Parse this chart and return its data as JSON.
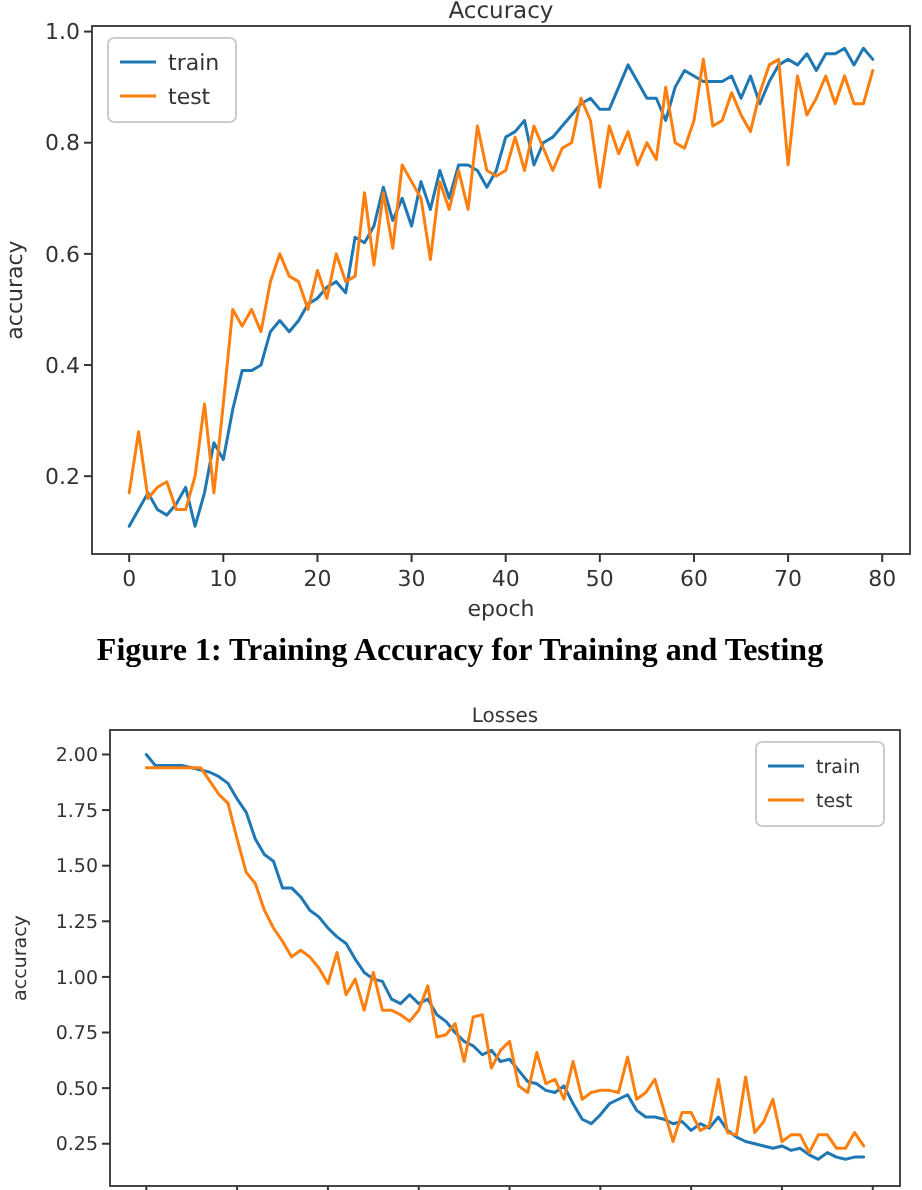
{
  "chart_data": [
    {
      "type": "line",
      "title": "Accuracy",
      "xlabel": "epoch",
      "ylabel": "accuracy",
      "annotations": [
        "Figure 1: Training Accuracy for Training and Testing"
      ],
      "x": [
        0,
        1,
        2,
        3,
        4,
        5,
        6,
        7,
        8,
        9,
        10,
        11,
        12,
        13,
        14,
        15,
        16,
        17,
        18,
        19,
        20,
        21,
        22,
        23,
        24,
        25,
        26,
        27,
        28,
        29,
        30,
        31,
        32,
        33,
        34,
        35,
        36,
        37,
        38,
        39,
        40,
        41,
        42,
        43,
        44,
        45,
        46,
        47,
        48,
        49,
        50,
        51,
        52,
        53,
        54,
        55,
        56,
        57,
        58,
        59,
        60,
        61,
        62,
        63,
        64,
        65,
        66,
        67,
        68,
        69,
        70,
        71,
        72,
        73,
        74,
        75,
        76,
        77,
        78,
        79
      ],
      "xlim": [
        -3.95,
        82.95
      ],
      "xticks": [
        0,
        10,
        20,
        30,
        40,
        50,
        60,
        70,
        80
      ],
      "ylim": [
        0.06,
        1.01
      ],
      "yticks": [
        0.2,
        0.4,
        0.6,
        0.8,
        {
          "value": 1.0,
          "label": "1.0"
        }
      ],
      "legend": "top left",
      "grid": false,
      "series": [
        {
          "name": "train",
          "color": "#1f77b4",
          "values": [
            0.11,
            0.14,
            0.17,
            0.14,
            0.13,
            0.15,
            0.18,
            0.11,
            0.17,
            0.26,
            0.23,
            0.32,
            0.39,
            0.39,
            0.4,
            0.46,
            0.48,
            0.46,
            0.48,
            0.51,
            0.52,
            0.54,
            0.55,
            0.53,
            0.63,
            0.62,
            0.65,
            0.72,
            0.66,
            0.7,
            0.65,
            0.73,
            0.68,
            0.75,
            0.7,
            0.76,
            0.76,
            0.75,
            0.72,
            0.75,
            0.81,
            0.82,
            0.84,
            0.76,
            0.8,
            0.81,
            0.83,
            0.85,
            0.87,
            0.88,
            0.86,
            0.86,
            0.9,
            0.94,
            0.91,
            0.88,
            0.88,
            0.84,
            0.9,
            0.93,
            0.92,
            0.91,
            0.91,
            0.91,
            0.92,
            0.88,
            0.92,
            0.87,
            0.91,
            0.94,
            0.95,
            0.94,
            0.96,
            0.93,
            0.96,
            0.96,
            0.97,
            0.94,
            0.97,
            0.95
          ]
        },
        {
          "name": "test",
          "color": "#ff7f0e",
          "values": [
            0.17,
            0.28,
            0.16,
            0.18,
            0.19,
            0.14,
            0.14,
            0.2,
            0.33,
            0.17,
            0.33,
            0.5,
            0.47,
            0.5,
            0.46,
            0.55,
            0.6,
            0.56,
            0.55,
            0.5,
            0.57,
            0.52,
            0.6,
            0.55,
            0.56,
            0.71,
            0.58,
            0.71,
            0.61,
            0.76,
            0.73,
            0.7,
            0.59,
            0.73,
            0.68,
            0.75,
            0.68,
            0.83,
            0.75,
            0.74,
            0.75,
            0.81,
            0.75,
            0.83,
            0.79,
            0.75,
            0.79,
            0.8,
            0.88,
            0.84,
            0.72,
            0.83,
            0.78,
            0.82,
            0.76,
            0.8,
            0.77,
            0.9,
            0.8,
            0.79,
            0.84,
            0.95,
            0.83,
            0.84,
            0.89,
            0.85,
            0.82,
            0.89,
            0.94,
            0.95,
            0.76,
            0.92,
            0.85,
            0.88,
            0.92,
            0.87,
            0.92,
            0.87,
            0.87,
            0.93
          ]
        }
      ]
    },
    {
      "type": "line",
      "title": "Losses",
      "ylabel": "accuracy",
      "categories": [
        null,
        null,
        null,
        null,
        null,
        null,
        null,
        null,
        null,
        null,
        null,
        null,
        null,
        null,
        null,
        null,
        null,
        null,
        null,
        null,
        null,
        null,
        null,
        null,
        null,
        null,
        null,
        null,
        null,
        null,
        null,
        null,
        null,
        null,
        null,
        null,
        null,
        null,
        null,
        null,
        null,
        null,
        null,
        null,
        null,
        null,
        null,
        null,
        null,
        null,
        null,
        null,
        null,
        null,
        null,
        null,
        null,
        null,
        null,
        null,
        null,
        null,
        null,
        null,
        null,
        null,
        null,
        null,
        null,
        null,
        null,
        null,
        null,
        null,
        null,
        null,
        null,
        null,
        null,
        null
      ],
      "ylim": [
        0.06,
        2.11
      ],
      "yticks": [
        {
          "value": 0.25,
          "label": "0.25"
        },
        {
          "value": 0.5,
          "label": "0.50"
        },
        {
          "value": 0.75,
          "label": "0.75"
        },
        {
          "value": 1.0,
          "label": "1.00"
        },
        {
          "value": 1.25,
          "label": "1.25"
        },
        {
          "value": 1.5,
          "label": "1.50"
        },
        {
          "value": 1.75,
          "label": "1.75"
        },
        {
          "value": 2.0,
          "label": "2.00"
        }
      ],
      "tick_labels": "y",
      "legend": "top right",
      "grid": false,
      "series": [
        {
          "name": "train",
          "color": "#1f77b4",
          "values": [
            2.0,
            1.95,
            1.95,
            1.95,
            1.95,
            1.94,
            1.93,
            1.92,
            1.9,
            1.87,
            1.8,
            1.74,
            1.62,
            1.55,
            1.52,
            1.4,
            1.4,
            1.36,
            1.3,
            1.27,
            1.22,
            1.18,
            1.15,
            1.08,
            1.02,
            0.99,
            0.98,
            0.9,
            0.88,
            0.92,
            0.88,
            0.9,
            0.83,
            0.8,
            0.75,
            0.71,
            0.69,
            0.65,
            0.67,
            0.62,
            0.63,
            0.58,
            0.53,
            0.52,
            0.49,
            0.48,
            0.51,
            0.43,
            0.36,
            0.34,
            0.38,
            0.43,
            0.45,
            0.47,
            0.4,
            0.37,
            0.37,
            0.36,
            0.34,
            0.35,
            0.31,
            0.34,
            0.32,
            0.37,
            0.31,
            0.28,
            0.26,
            0.25,
            0.24,
            0.23,
            0.24,
            0.22,
            0.23,
            0.2,
            0.18,
            0.21,
            0.19,
            0.18,
            0.19,
            0.19
          ]
        },
        {
          "name": "test",
          "color": "#ff7f0e",
          "values": [
            1.94,
            1.94,
            1.94,
            1.94,
            1.94,
            1.94,
            1.94,
            1.88,
            1.82,
            1.78,
            1.62,
            1.47,
            1.42,
            1.3,
            1.22,
            1.16,
            1.09,
            1.12,
            1.09,
            1.04,
            0.97,
            1.11,
            0.92,
            0.99,
            0.85,
            1.02,
            0.85,
            0.85,
            0.83,
            0.8,
            0.85,
            0.96,
            0.73,
            0.74,
            0.79,
            0.62,
            0.82,
            0.83,
            0.59,
            0.67,
            0.71,
            0.51,
            0.48,
            0.66,
            0.52,
            0.54,
            0.45,
            0.62,
            0.45,
            0.48,
            0.49,
            0.49,
            0.48,
            0.64,
            0.45,
            0.48,
            0.54,
            0.4,
            0.26,
            0.39,
            0.39,
            0.31,
            0.33,
            0.54,
            0.3,
            0.29,
            0.55,
            0.3,
            0.35,
            0.45,
            0.26,
            0.29,
            0.29,
            0.21,
            0.29,
            0.29,
            0.23,
            0.23,
            0.3,
            0.24
          ]
        }
      ]
    }
  ]
}
